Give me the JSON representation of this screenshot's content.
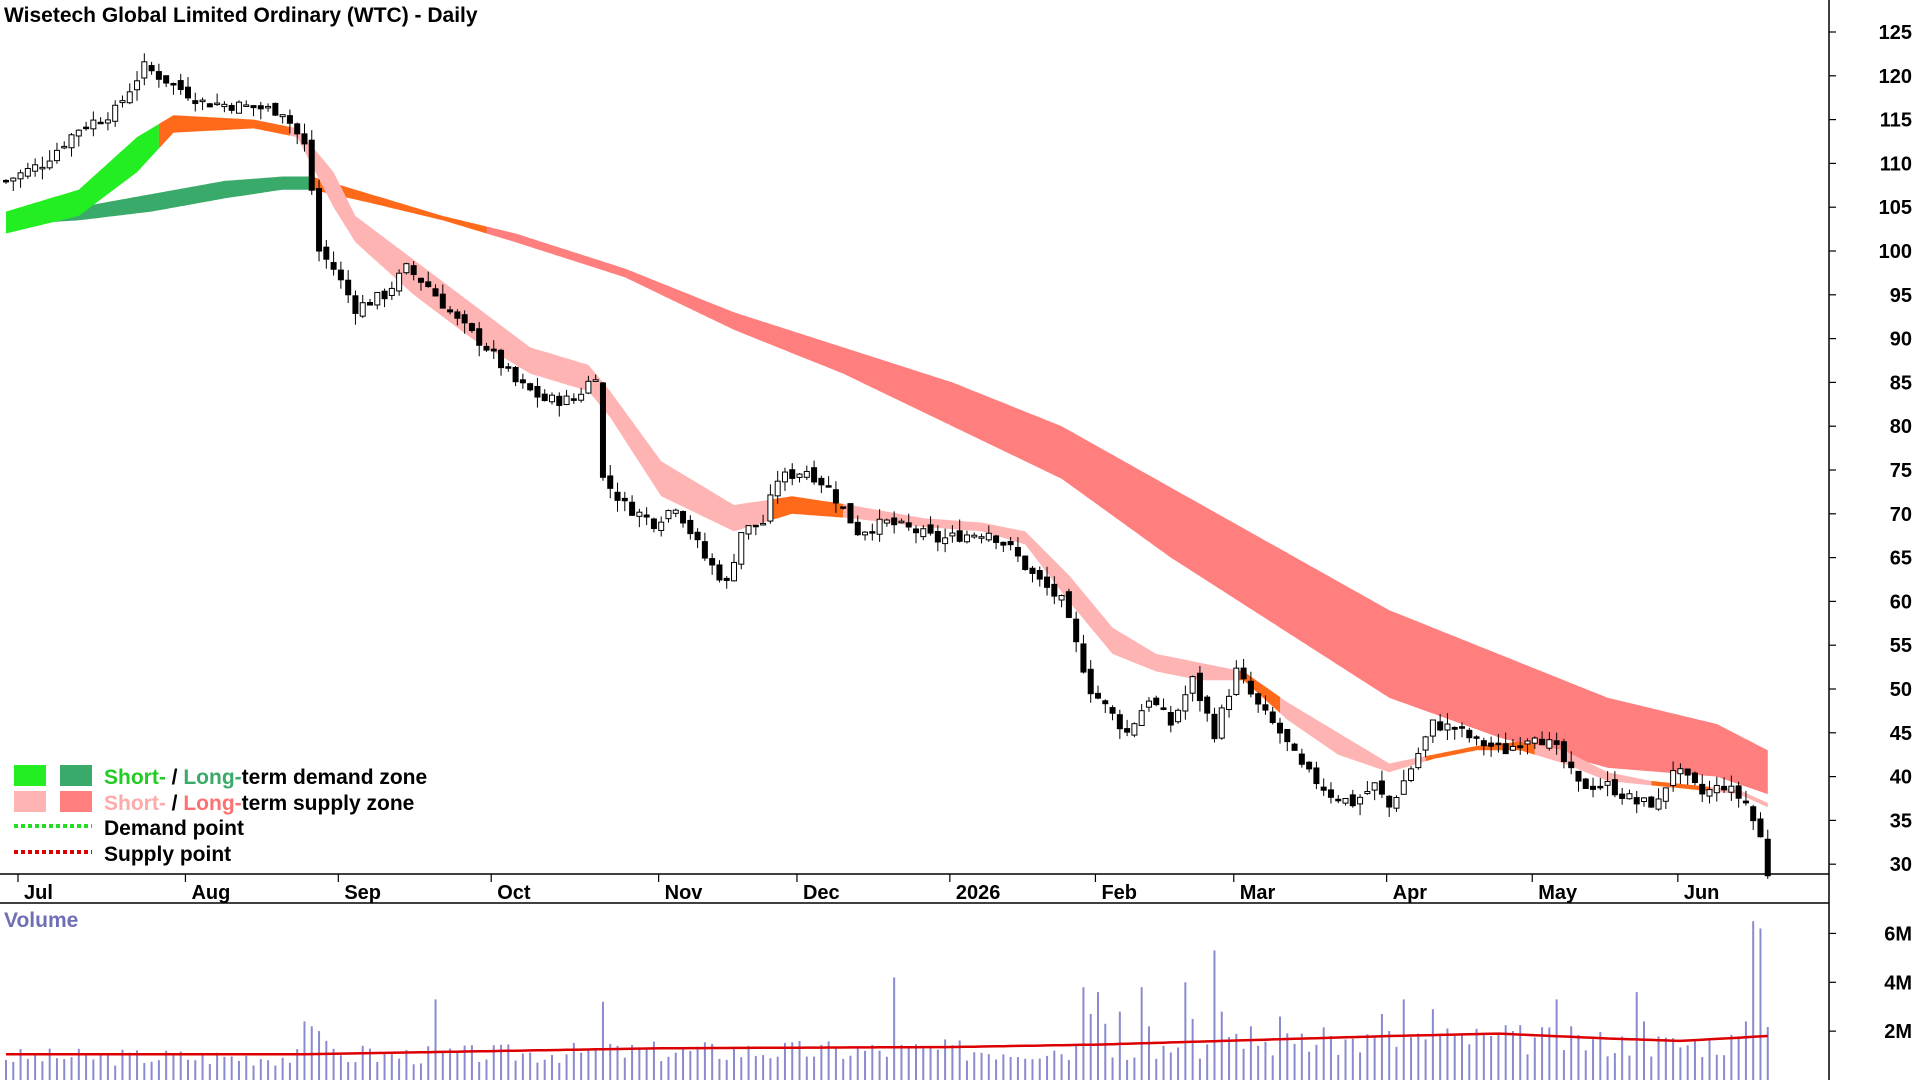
{
  "chart_data": {
    "type": "candlestick",
    "title": "Wisetech Global Limited Ordinary (WTC) - Daily",
    "subtitle": "",
    "xlabel": "",
    "ylabel": "",
    "ylim": [
      27,
      128
    ],
    "y_ticks": [
      125,
      120,
      115,
      110,
      105,
      100,
      95,
      90,
      85,
      80,
      75,
      70,
      65,
      60,
      55,
      50,
      45,
      40,
      35,
      30
    ],
    "x_labels": [
      {
        "label": "Jul",
        "index": 0
      },
      {
        "label": "Aug",
        "index": 23
      },
      {
        "label": "Sep",
        "index": 44
      },
      {
        "label": "Oct",
        "index": 65
      },
      {
        "label": "Nov",
        "index": 88
      },
      {
        "label": "Dec",
        "index": 107
      },
      {
        "label": "2026",
        "index": 128
      },
      {
        "label": "Feb",
        "index": 148
      },
      {
        "label": "Mar",
        "index": 167
      },
      {
        "label": "Apr",
        "index": 188
      },
      {
        "label": "May",
        "index": 208
      },
      {
        "label": "Jun",
        "index": 228
      }
    ],
    "grid": false,
    "legend_position": "bottom-left",
    "price_keypoints": [
      [
        0,
        108
      ],
      [
        5,
        110
      ],
      [
        10,
        114
      ],
      [
        15,
        116
      ],
      [
        19,
        121
      ],
      [
        23,
        119
      ],
      [
        27,
        117
      ],
      [
        33,
        116.5
      ],
      [
        38,
        116
      ],
      [
        41,
        112
      ],
      [
        42,
        107
      ],
      [
        43,
        100
      ],
      [
        45,
        98
      ],
      [
        48,
        93.5
      ],
      [
        52,
        95
      ],
      [
        55,
        98
      ],
      [
        58,
        96
      ],
      [
        62,
        92
      ],
      [
        66,
        89
      ],
      [
        70,
        85
      ],
      [
        74,
        83
      ],
      [
        78,
        83
      ],
      [
        81,
        86
      ],
      [
        82,
        74
      ],
      [
        85,
        71
      ],
      [
        89,
        69
      ],
      [
        92,
        71
      ],
      [
        96,
        65
      ],
      [
        99,
        62
      ],
      [
        101,
        68
      ],
      [
        104,
        69
      ],
      [
        106,
        74
      ],
      [
        110,
        75
      ],
      [
        113,
        73
      ],
      [
        117,
        68
      ],
      [
        121,
        69
      ],
      [
        125,
        68
      ],
      [
        128,
        67
      ],
      [
        131,
        67.5
      ],
      [
        135,
        68
      ],
      [
        138,
        66
      ],
      [
        141,
        63
      ],
      [
        145,
        60
      ],
      [
        147,
        55
      ],
      [
        149,
        50
      ],
      [
        151,
        48
      ],
      [
        154,
        45
      ],
      [
        157,
        49
      ],
      [
        160,
        46
      ],
      [
        163,
        51
      ],
      [
        166,
        45
      ],
      [
        169,
        52
      ],
      [
        172,
        48
      ],
      [
        175,
        45
      ],
      [
        178,
        41
      ],
      [
        182,
        38
      ],
      [
        185,
        37
      ],
      [
        188,
        39
      ],
      [
        190,
        36.5
      ],
      [
        193,
        41
      ],
      [
        196,
        46
      ],
      [
        199,
        45.5
      ],
      [
        202,
        44
      ],
      [
        206,
        43
      ],
      [
        210,
        45
      ],
      [
        213,
        43
      ],
      [
        216,
        39
      ],
      [
        220,
        39
      ],
      [
        224,
        37
      ],
      [
        227,
        37
      ],
      [
        229,
        41
      ],
      [
        233,
        38
      ],
      [
        236,
        39
      ],
      [
        239,
        37
      ],
      [
        241,
        33
      ],
      [
        242,
        29
      ]
    ],
    "series": [
      {
        "name": "Short",
        "role": "short-term band",
        "upper": [
          [
            0,
            104.5
          ],
          [
            10,
            107
          ],
          [
            18,
            113
          ],
          [
            23,
            115.5
          ],
          [
            34,
            115
          ],
          [
            40,
            114
          ],
          [
            45,
            109
          ],
          [
            48,
            104
          ],
          [
            56,
            99
          ],
          [
            64,
            94
          ],
          [
            72,
            89
          ],
          [
            80,
            87
          ],
          [
            83,
            84
          ],
          [
            90,
            76
          ],
          [
            100,
            71
          ],
          [
            108,
            72
          ],
          [
            116,
            71
          ],
          [
            126,
            69.5
          ],
          [
            134,
            69
          ],
          [
            140,
            68
          ],
          [
            146,
            63
          ],
          [
            152,
            57
          ],
          [
            158,
            54
          ],
          [
            164,
            53
          ],
          [
            170,
            52
          ],
          [
            176,
            48.5
          ],
          [
            183,
            45
          ],
          [
            190,
            41.5
          ],
          [
            196,
            42.5
          ],
          [
            202,
            43.5
          ],
          [
            208,
            44
          ],
          [
            214,
            43
          ],
          [
            220,
            40.5
          ],
          [
            226,
            39.5
          ],
          [
            232,
            39
          ],
          [
            238,
            38.5
          ],
          [
            242,
            37
          ]
        ],
        "lower": [
          [
            0,
            102
          ],
          [
            10,
            104
          ],
          [
            18,
            109
          ],
          [
            23,
            113.5
          ],
          [
            34,
            114
          ],
          [
            40,
            113
          ],
          [
            45,
            105
          ],
          [
            48,
            101
          ],
          [
            56,
            95
          ],
          [
            64,
            90
          ],
          [
            72,
            86
          ],
          [
            80,
            84
          ],
          [
            83,
            81
          ],
          [
            90,
            72
          ],
          [
            100,
            68
          ],
          [
            108,
            70
          ],
          [
            116,
            69.5
          ],
          [
            126,
            68.5
          ],
          [
            134,
            68
          ],
          [
            140,
            66.5
          ],
          [
            146,
            60
          ],
          [
            152,
            54
          ],
          [
            158,
            52
          ],
          [
            164,
            51
          ],
          [
            170,
            51
          ],
          [
            176,
            46.5
          ],
          [
            183,
            42.5
          ],
          [
            190,
            40.5
          ],
          [
            196,
            42
          ],
          [
            202,
            43
          ],
          [
            208,
            43
          ],
          [
            214,
            41.5
          ],
          [
            220,
            39.5
          ],
          [
            226,
            39
          ],
          [
            232,
            38.5
          ],
          [
            238,
            38
          ],
          [
            242,
            36.5
          ]
        ]
      },
      {
        "name": "Long",
        "role": "long-term band",
        "upper": [
          [
            0,
            103.5
          ],
          [
            10,
            105
          ],
          [
            20,
            106.5
          ],
          [
            30,
            108
          ],
          [
            38,
            108.5
          ],
          [
            42,
            108.5
          ],
          [
            50,
            106.5
          ],
          [
            60,
            104
          ],
          [
            70,
            102
          ],
          [
            85,
            98
          ],
          [
            100,
            93
          ],
          [
            115,
            89
          ],
          [
            130,
            85
          ],
          [
            145,
            80
          ],
          [
            160,
            73
          ],
          [
            175,
            66
          ],
          [
            190,
            59
          ],
          [
            205,
            54
          ],
          [
            220,
            49
          ],
          [
            235,
            46
          ],
          [
            242,
            43
          ]
        ],
        "lower": [
          [
            0,
            103
          ],
          [
            10,
            103.5
          ],
          [
            20,
            104.5
          ],
          [
            30,
            106
          ],
          [
            38,
            107
          ],
          [
            42,
            107
          ],
          [
            50,
            105.5
          ],
          [
            60,
            103.5
          ],
          [
            70,
            101
          ],
          [
            85,
            97
          ],
          [
            100,
            91
          ],
          [
            115,
            86
          ],
          [
            130,
            80
          ],
          [
            145,
            74
          ],
          [
            160,
            65
          ],
          [
            175,
            57
          ],
          [
            190,
            49
          ],
          [
            205,
            44.5
          ],
          [
            220,
            41
          ],
          [
            235,
            40
          ],
          [
            242,
            38
          ]
        ]
      }
    ],
    "zone_runs": {
      "short": [
        [
          0,
          21,
          "demand"
        ],
        [
          21,
          39,
          "neutral"
        ],
        [
          39,
          105,
          "supply"
        ],
        [
          105,
          115,
          "neutral"
        ],
        [
          115,
          169,
          "supply"
        ],
        [
          169,
          175,
          "neutral"
        ],
        [
          175,
          195,
          "supply"
        ],
        [
          195,
          210,
          "neutral"
        ],
        [
          210,
          226,
          "supply"
        ],
        [
          226,
          234,
          "neutral"
        ],
        [
          234,
          242,
          "supply"
        ]
      ],
      "long": [
        [
          0,
          42,
          "demand"
        ],
        [
          42,
          66,
          "neutral"
        ],
        [
          66,
          242,
          "supply"
        ]
      ]
    },
    "volume": {
      "title": "Volume",
      "ticks": [
        "6M",
        "4M",
        "2M"
      ],
      "tick_values": [
        6000000,
        4000000,
        2000000
      ],
      "ymax": 7000000,
      "base": 950000,
      "spikes": [
        [
          41,
          2400000
        ],
        [
          42,
          2200000
        ],
        [
          43,
          2000000
        ],
        [
          44,
          1600000
        ],
        [
          49,
          1400000
        ],
        [
          59,
          3300000
        ],
        [
          82,
          3200000
        ],
        [
          84,
          1400000
        ],
        [
          122,
          4200000
        ],
        [
          148,
          3800000
        ],
        [
          149,
          2700000
        ],
        [
          150,
          3600000
        ],
        [
          151,
          2300000
        ],
        [
          153,
          2800000
        ],
        [
          156,
          3800000
        ],
        [
          157,
          2200000
        ],
        [
          162,
          4000000
        ],
        [
          163,
          2500000
        ],
        [
          166,
          5300000
        ],
        [
          167,
          2800000
        ],
        [
          171,
          2200000
        ],
        [
          175,
          2600000
        ],
        [
          178,
          1900000
        ],
        [
          182,
          1800000
        ],
        [
          189,
          2700000
        ],
        [
          192,
          3300000
        ],
        [
          194,
          1900000
        ],
        [
          196,
          2900000
        ],
        [
          199,
          1800000
        ],
        [
          204,
          1800000
        ],
        [
          207,
          2000000
        ],
        [
          213,
          3300000
        ],
        [
          224,
          3600000
        ],
        [
          225,
          2400000
        ],
        [
          240,
          6500000
        ],
        [
          241,
          6200000
        ],
        [
          239,
          2400000
        ]
      ],
      "average": [
        [
          0,
          1050000
        ],
        [
          40,
          1050000
        ],
        [
          90,
          1300000
        ],
        [
          130,
          1350000
        ],
        [
          150,
          1450000
        ],
        [
          190,
          1800000
        ],
        [
          205,
          1900000
        ],
        [
          220,
          1700000
        ],
        [
          230,
          1600000
        ],
        [
          242,
          1800000
        ]
      ]
    },
    "legend": [
      {
        "first": "Short-",
        "sep": " / ",
        "second": "Long-",
        "rest": "term demand zone",
        "kind": "demand-zone"
      },
      {
        "first": "Short-",
        "sep": " / ",
        "second": "Long-",
        "rest": "term supply zone",
        "kind": "supply-zone"
      },
      {
        "label": "Demand point",
        "kind": "demand-point"
      },
      {
        "label": "Supply point",
        "kind": "supply-point"
      }
    ],
    "colors": {
      "short_demand": "#22ee22",
      "long_demand": "#3aaa6a",
      "short_supply": "#ffb4b4",
      "long_supply": "#ff7f7f",
      "neutral": "#ff6a1a",
      "demand_point": "#22dd22",
      "supply_point": "#dd0000",
      "volume_bar": "#8a8ad0",
      "volume_avg": "#dd0000",
      "legend_short": "#22cc22",
      "legend_long": "#3aaa6a",
      "legend_short_supply": "#ffaaaa",
      "legend_long_supply": "#ff7070",
      "legend_text": "#000000"
    }
  }
}
